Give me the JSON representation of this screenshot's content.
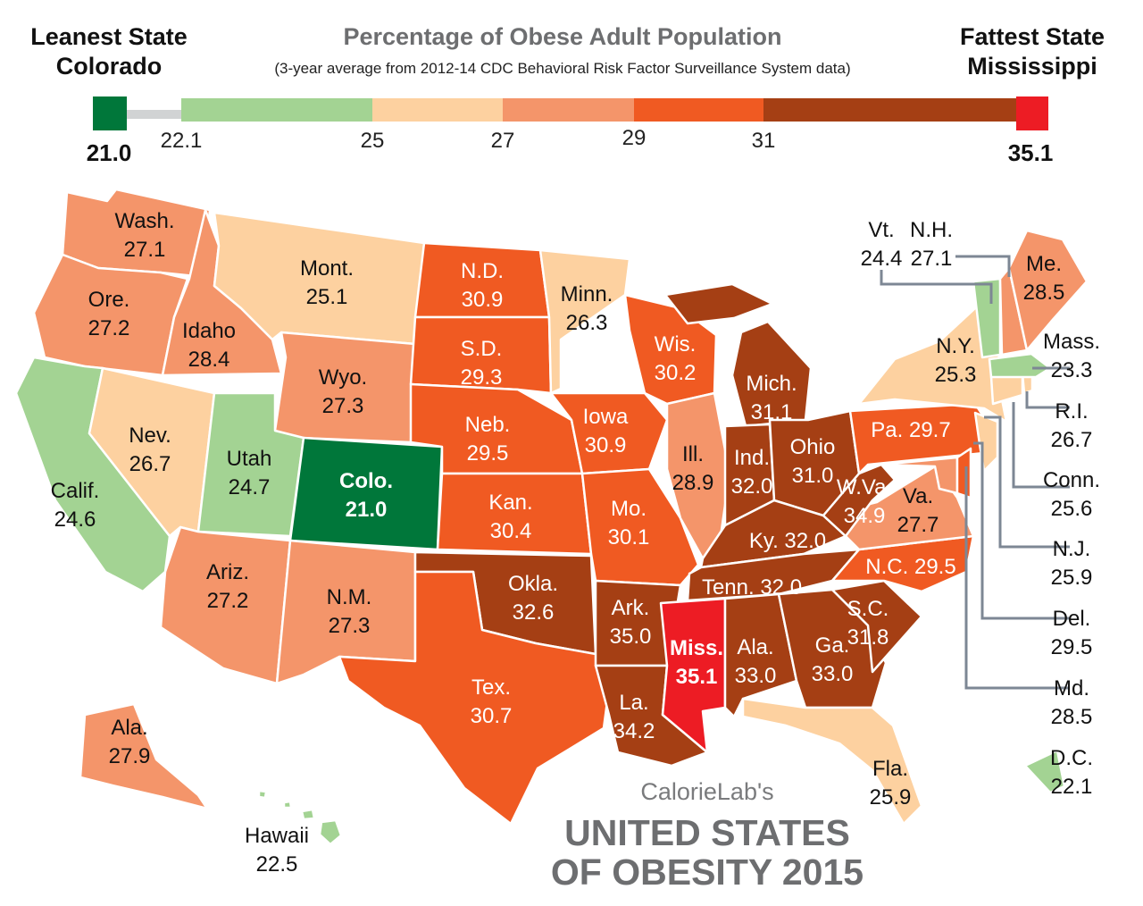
{
  "header": {
    "leanest_label": "Leanest State",
    "leanest_state": "Colorado",
    "fattest_label": "Fattest State",
    "fattest_state": "Mississippi",
    "title": "Percentage of Obese Adult Population",
    "subtitle": "(3-year average from 2012-14 CDC Behavioral Risk Factor Surveillance System data)"
  },
  "legend": {
    "min_value": "21.0",
    "max_value": "35.1",
    "ticks": [
      "22.1",
      "25",
      "27",
      "29",
      "31"
    ],
    "bins": [
      {
        "from": 21.0,
        "to": 21.0,
        "color": "#00773a"
      },
      {
        "from": 22.1,
        "to": 25,
        "color": "#a3d393"
      },
      {
        "from": 25,
        "to": 27,
        "color": "#fdd1a0"
      },
      {
        "from": 27,
        "to": 29,
        "color": "#f4956a"
      },
      {
        "from": 29,
        "to": 31,
        "color": "#f05a22"
      },
      {
        "from": 31,
        "to": 35.0,
        "color": "#a53f14"
      },
      {
        "from": 35.1,
        "to": 35.1,
        "color": "#ed1c24"
      }
    ],
    "gap_color": "#d1d3d4"
  },
  "states": [
    {
      "id": "wa",
      "label": "Wash.",
      "value": 27.1
    },
    {
      "id": "or",
      "label": "Ore.",
      "value": 27.2
    },
    {
      "id": "ca",
      "label": "Calif.",
      "value": 24.6
    },
    {
      "id": "id",
      "label": "Idaho",
      "value": 28.4
    },
    {
      "id": "nv",
      "label": "Nev.",
      "value": 26.7
    },
    {
      "id": "mt",
      "label": "Mont.",
      "value": 25.1
    },
    {
      "id": "wy",
      "label": "Wyo.",
      "value": 27.3
    },
    {
      "id": "ut",
      "label": "Utah",
      "value": 24.7
    },
    {
      "id": "co",
      "label": "Colo.",
      "value": 21.0
    },
    {
      "id": "az",
      "label": "Ariz.",
      "value": 27.2
    },
    {
      "id": "nm",
      "label": "N.M.",
      "value": 27.3
    },
    {
      "id": "nd",
      "label": "N.D.",
      "value": 30.9
    },
    {
      "id": "sd",
      "label": "S.D.",
      "value": 29.3
    },
    {
      "id": "ne",
      "label": "Neb.",
      "value": 29.5
    },
    {
      "id": "ks",
      "label": "Kan.",
      "value": 30.4
    },
    {
      "id": "ok",
      "label": "Okla.",
      "value": 32.6
    },
    {
      "id": "tx",
      "label": "Tex.",
      "value": 30.7
    },
    {
      "id": "mn",
      "label": "Minn.",
      "value": 26.3
    },
    {
      "id": "ia",
      "label": "Iowa",
      "value": 30.9
    },
    {
      "id": "mo",
      "label": "Mo.",
      "value": 30.1
    },
    {
      "id": "ar",
      "label": "Ark.",
      "value": 35.0
    },
    {
      "id": "la",
      "label": "La.",
      "value": 34.2
    },
    {
      "id": "wi",
      "label": "Wis.",
      "value": 30.2
    },
    {
      "id": "il",
      "label": "Ill.",
      "value": 28.9
    },
    {
      "id": "mi",
      "label": "Mich.",
      "value": 31.1
    },
    {
      "id": "in",
      "label": "Ind.",
      "value": 32.0
    },
    {
      "id": "oh",
      "label": "Ohio",
      "value": 31.0
    },
    {
      "id": "ky",
      "label": "Ky.",
      "value": 32.0
    },
    {
      "id": "tn",
      "label": "Tenn.",
      "value": 32.0
    },
    {
      "id": "ms",
      "label": "Miss.",
      "value": 35.1
    },
    {
      "id": "al",
      "label": "Ala.",
      "value": 33.0
    },
    {
      "id": "ga",
      "label": "Ga.",
      "value": 33.0
    },
    {
      "id": "fl",
      "label": "Fla.",
      "value": 25.9
    },
    {
      "id": "sc",
      "label": "S.C.",
      "value": 31.8
    },
    {
      "id": "nc",
      "label": "N.C.",
      "value": 29.5
    },
    {
      "id": "va",
      "label": "Va.",
      "value": 27.7
    },
    {
      "id": "wv",
      "label": "W.Va.",
      "value": 34.9
    },
    {
      "id": "pa",
      "label": "Pa.",
      "value": 29.7
    },
    {
      "id": "ny",
      "label": "N.Y.",
      "value": 25.3
    },
    {
      "id": "md",
      "label": "Md.",
      "value": 28.5
    },
    {
      "id": "de",
      "label": "Del.",
      "value": 29.5
    },
    {
      "id": "nj",
      "label": "N.J.",
      "value": 25.9
    },
    {
      "id": "ct",
      "label": "Conn.",
      "value": 25.6
    },
    {
      "id": "ri",
      "label": "R.I.",
      "value": 26.7
    },
    {
      "id": "ma",
      "label": "Mass.",
      "value": 23.3
    },
    {
      "id": "vt",
      "label": "Vt.",
      "value": 24.4
    },
    {
      "id": "nh",
      "label": "N.H.",
      "value": 27.1
    },
    {
      "id": "me",
      "label": "Me.",
      "value": 28.5
    },
    {
      "id": "dc",
      "label": "D.C.",
      "value": 22.1
    },
    {
      "id": "ak",
      "label": "Ala.",
      "value": 27.9
    },
    {
      "id": "hi",
      "label": "Hawaii",
      "value": 22.5
    }
  ],
  "branding": {
    "line1": "CalorieLab's",
    "line2": "UNITED STATES",
    "line3": "OF OBESITY 2015"
  }
}
